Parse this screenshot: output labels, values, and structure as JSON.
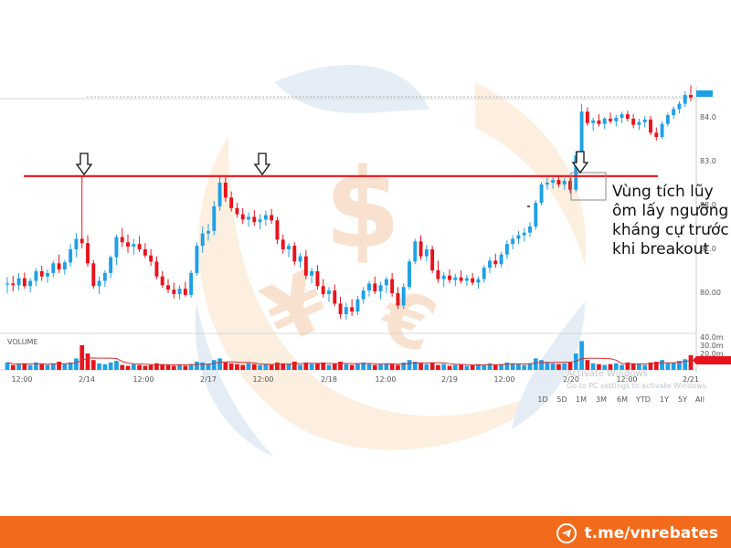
{
  "chart_data": {
    "type": "candlestick",
    "title": "",
    "volume_label": "VOLUME",
    "x_tick_labels": [
      "12:00",
      "2/14",
      "12:00",
      "2/17",
      "12:00",
      "2/18",
      "12:00",
      "2/19",
      "12:00",
      "2/20",
      "12:00",
      "2/21"
    ],
    "y_tick_labels": [
      "84.0",
      "83.0",
      "82.0",
      "81.0",
      "80.00"
    ],
    "volume_tick_labels": [
      "40.0m",
      "30.0m",
      "20.0m"
    ],
    "range_buttons": [
      "1D",
      "5D",
      "1M",
      "3M",
      "6M",
      "YTD",
      "1Y",
      "5Y",
      "All"
    ],
    "resistance_level": 82.65,
    "price_candles_ohlc": [
      [
        80.18,
        80.35,
        79.98,
        80.2
      ],
      [
        80.2,
        80.38,
        80.02,
        80.16
      ],
      [
        80.16,
        80.44,
        80.05,
        80.32
      ],
      [
        80.32,
        80.45,
        80.08,
        80.14
      ],
      [
        80.14,
        80.32,
        80.0,
        80.26
      ],
      [
        80.26,
        80.55,
        80.14,
        80.48
      ],
      [
        80.48,
        80.6,
        80.26,
        80.36
      ],
      [
        80.36,
        80.52,
        80.22,
        80.44
      ],
      [
        80.44,
        80.72,
        80.34,
        80.66
      ],
      [
        80.66,
        80.86,
        80.44,
        80.52
      ],
      [
        80.52,
        80.74,
        80.4,
        80.68
      ],
      [
        80.68,
        81.1,
        80.58,
        80.98
      ],
      [
        80.98,
        81.35,
        80.8,
        81.22
      ],
      [
        81.22,
        82.65,
        81.0,
        81.12
      ],
      [
        81.12,
        81.3,
        80.58,
        80.66
      ],
      [
        80.66,
        80.74,
        80.08,
        80.14
      ],
      [
        80.14,
        80.36,
        79.96,
        80.26
      ],
      [
        80.26,
        80.5,
        80.12,
        80.44
      ],
      [
        80.44,
        80.84,
        80.32,
        80.8
      ],
      [
        80.8,
        81.32,
        80.62,
        81.26
      ],
      [
        81.26,
        81.46,
        81.04,
        81.14
      ],
      [
        81.14,
        81.32,
        80.9,
        81.04
      ],
      [
        81.04,
        81.22,
        80.86,
        81.1
      ],
      [
        81.1,
        81.28,
        80.92,
        80.98
      ],
      [
        80.98,
        81.12,
        80.78,
        80.84
      ],
      [
        80.84,
        80.98,
        80.6,
        80.7
      ],
      [
        80.7,
        80.82,
        80.3,
        80.36
      ],
      [
        80.36,
        80.48,
        80.1,
        80.16
      ],
      [
        80.16,
        80.3,
        79.98,
        80.06
      ],
      [
        80.06,
        80.22,
        79.86,
        79.96
      ],
      [
        79.96,
        80.16,
        79.84,
        80.08
      ],
      [
        80.08,
        80.24,
        79.9,
        79.94
      ],
      [
        79.94,
        80.5,
        79.88,
        80.44
      ],
      [
        80.44,
        81.14,
        80.38,
        81.06
      ],
      [
        81.06,
        81.5,
        80.9,
        81.34
      ],
      [
        81.34,
        81.56,
        81.18,
        81.4
      ],
      [
        81.4,
        82.08,
        81.3,
        81.96
      ],
      [
        81.96,
        82.65,
        81.86,
        82.5
      ],
      [
        82.5,
        82.62,
        82.06,
        82.16
      ],
      [
        82.16,
        82.3,
        81.84,
        81.92
      ],
      [
        81.92,
        82.04,
        81.7,
        81.78
      ],
      [
        81.78,
        81.92,
        81.56,
        81.66
      ],
      [
        81.66,
        81.82,
        81.5,
        81.72
      ],
      [
        81.72,
        81.88,
        81.52,
        81.6
      ],
      [
        81.6,
        81.78,
        81.44,
        81.66
      ],
      [
        81.66,
        81.86,
        81.52,
        81.76
      ],
      [
        81.76,
        81.9,
        81.56,
        81.64
      ],
      [
        81.64,
        81.72,
        81.1,
        81.2
      ],
      [
        81.2,
        81.32,
        80.88,
        80.98
      ],
      [
        80.98,
        81.12,
        80.8,
        81.06
      ],
      [
        81.06,
        81.14,
        80.62,
        80.7
      ],
      [
        80.7,
        80.9,
        80.56,
        80.82
      ],
      [
        80.82,
        80.96,
        80.3,
        80.38
      ],
      [
        80.38,
        80.56,
        80.2,
        80.48
      ],
      [
        80.48,
        80.62,
        80.06,
        80.14
      ],
      [
        80.14,
        80.3,
        79.88,
        79.96
      ],
      [
        79.96,
        80.12,
        79.78,
        80.04
      ],
      [
        80.04,
        80.18,
        79.68,
        79.74
      ],
      [
        79.74,
        79.9,
        79.4,
        79.5
      ],
      [
        79.5,
        79.76,
        79.38,
        79.66
      ],
      [
        79.66,
        79.84,
        79.46,
        79.56
      ],
      [
        79.56,
        79.92,
        79.48,
        79.84
      ],
      [
        79.84,
        80.12,
        79.74,
        80.04
      ],
      [
        80.04,
        80.26,
        79.9,
        80.2
      ],
      [
        80.2,
        80.36,
        79.96,
        80.02
      ],
      [
        80.02,
        80.24,
        79.84,
        80.16
      ],
      [
        80.16,
        80.36,
        79.98,
        80.3
      ],
      [
        80.3,
        80.44,
        79.9,
        79.98
      ],
      [
        79.98,
        80.12,
        79.62,
        79.7
      ],
      [
        79.7,
        80.2,
        79.62,
        80.12
      ],
      [
        80.12,
        80.76,
        80.06,
        80.7
      ],
      [
        80.7,
        81.22,
        80.64,
        81.16
      ],
      [
        81.16,
        81.3,
        80.74,
        80.82
      ],
      [
        80.82,
        81.08,
        80.7,
        80.98
      ],
      [
        80.98,
        81.06,
        80.44,
        80.5
      ],
      [
        80.5,
        80.72,
        80.22,
        80.3
      ],
      [
        80.3,
        80.46,
        80.12,
        80.38
      ],
      [
        80.38,
        80.52,
        80.2,
        80.28
      ],
      [
        80.28,
        80.42,
        80.14,
        80.34
      ],
      [
        80.34,
        80.5,
        80.2,
        80.26
      ],
      [
        80.26,
        80.4,
        80.14,
        80.32
      ],
      [
        80.32,
        80.44,
        80.16,
        80.22
      ],
      [
        80.22,
        80.36,
        80.08,
        80.3
      ],
      [
        80.3,
        80.62,
        80.22,
        80.56
      ],
      [
        80.56,
        80.8,
        80.44,
        80.72
      ],
      [
        80.72,
        80.88,
        80.56,
        80.64
      ],
      [
        80.64,
        80.92,
        80.56,
        80.86
      ],
      [
        80.86,
        81.18,
        80.76,
        81.1
      ],
      [
        81.1,
        81.3,
        80.98,
        81.22
      ],
      [
        81.22,
        81.4,
        81.1,
        81.3
      ],
      [
        81.3,
        81.46,
        81.16,
        81.36
      ],
      [
        81.36,
        81.6,
        81.26,
        81.5
      ],
      [
        81.5,
        82.1,
        81.42,
        82.04
      ],
      [
        82.04,
        82.52,
        81.98,
        82.46
      ],
      [
        82.46,
        82.66,
        82.34,
        82.5
      ],
      [
        82.5,
        82.62,
        82.36,
        82.56
      ],
      [
        82.56,
        82.66,
        82.4,
        82.46
      ],
      [
        82.46,
        82.6,
        82.34,
        82.54
      ],
      [
        82.54,
        82.62,
        82.26,
        82.34
      ],
      [
        82.34,
        83.2,
        82.28,
        83.12
      ],
      [
        83.12,
        84.3,
        83.06,
        84.12
      ],
      [
        84.12,
        84.22,
        83.8,
        83.86
      ],
      [
        83.86,
        83.98,
        83.68,
        83.92
      ],
      [
        83.92,
        84.06,
        83.78,
        83.84
      ],
      [
        83.84,
        84.0,
        83.72,
        83.96
      ],
      [
        83.96,
        84.1,
        83.84,
        83.9
      ],
      [
        83.9,
        84.04,
        83.78,
        83.98
      ],
      [
        83.98,
        84.12,
        83.86,
        84.06
      ],
      [
        84.06,
        84.14,
        83.9,
        83.96
      ],
      [
        83.96,
        84.06,
        83.74,
        83.82
      ],
      [
        83.82,
        83.96,
        83.7,
        83.88
      ],
      [
        83.88,
        84.02,
        83.76,
        83.94
      ],
      [
        83.94,
        84.02,
        83.58,
        83.64
      ],
      [
        83.64,
        83.76,
        83.46,
        83.54
      ],
      [
        83.54,
        83.9,
        83.5,
        83.84
      ],
      [
        83.84,
        84.1,
        83.78,
        84.04
      ],
      [
        84.04,
        84.24,
        83.96,
        84.18
      ],
      [
        84.18,
        84.36,
        84.08,
        84.3
      ],
      [
        84.3,
        84.58,
        84.22,
        84.5
      ],
      [
        84.5,
        84.72,
        84.36,
        84.44
      ]
    ],
    "volume_bars_m": [
      9,
      6,
      7,
      8,
      6,
      9,
      7,
      6,
      8,
      10,
      7,
      9,
      14,
      30,
      20,
      12,
      8,
      7,
      9,
      11,
      6,
      5,
      7,
      6,
      5,
      6,
      8,
      7,
      6,
      5,
      6,
      5,
      7,
      10,
      9,
      7,
      12,
      14,
      9,
      8,
      7,
      6,
      8,
      7,
      6,
      7,
      6,
      9,
      8,
      7,
      10,
      6,
      9,
      7,
      8,
      9,
      6,
      8,
      10,
      7,
      6,
      8,
      9,
      7,
      6,
      7,
      8,
      7,
      6,
      9,
      12,
      10,
      8,
      7,
      9,
      6,
      7,
      5,
      6,
      7,
      5,
      6,
      7,
      6,
      8,
      6,
      7,
      9,
      8,
      7,
      6,
      8,
      14,
      12,
      9,
      8,
      7,
      8,
      9,
      20,
      35,
      12,
      8,
      7,
      6,
      7,
      8,
      6,
      9,
      8,
      7,
      6,
      9,
      10,
      12,
      8,
      9,
      11,
      13,
      18
    ]
  },
  "annotation_text": "Vùng tích lũy ôm lấy ngưỡng kháng cự trước khi breakout",
  "watermark": {
    "line1": "Activate Windows",
    "line2": "Go to PC settings to activate Windows."
  },
  "footer": {
    "brand": "t.me/vnrebates"
  },
  "colors": {
    "up": "#1ea0e6",
    "down": "#e8131c",
    "resistance": "#e8131c",
    "footer_bg": "#f26b1d"
  }
}
